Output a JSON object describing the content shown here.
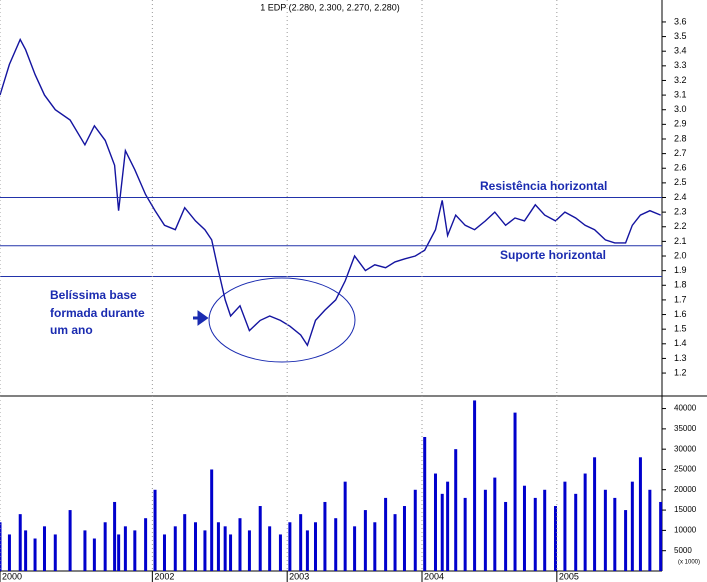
{
  "chart_data": [
    {
      "type": "line",
      "title": "1 EDP (2.280, 2.300, 2.270, 2.280)",
      "color": "#1414a0",
      "x": [
        2000.87,
        2000.94,
        2001.02,
        2001.06,
        2001.13,
        2001.2,
        2001.28,
        2001.39,
        2001.5,
        2001.57,
        2001.65,
        2001.72,
        2001.75,
        2001.8,
        2001.87,
        2001.95,
        2002.02,
        2002.09,
        2002.17,
        2002.24,
        2002.32,
        2002.39,
        2002.44,
        2002.49,
        2002.54,
        2002.58,
        2002.65,
        2002.72,
        2002.8,
        2002.87,
        2002.95,
        2003.02,
        2003.1,
        2003.15,
        2003.21,
        2003.28,
        2003.36,
        2003.43,
        2003.5,
        2003.58,
        2003.65,
        2003.73,
        2003.8,
        2003.87,
        2003.95,
        2004.02,
        2004.1,
        2004.15,
        2004.19,
        2004.25,
        2004.32,
        2004.39,
        2004.47,
        2004.54,
        2004.62,
        2004.69,
        2004.76,
        2004.84,
        2004.91,
        2004.99,
        2005.06,
        2005.14,
        2005.21,
        2005.28,
        2005.36,
        2005.43,
        2005.51,
        2005.56,
        2005.62,
        2005.69,
        2005.77
      ],
      "values": [
        3.1,
        3.31,
        3.48,
        3.41,
        3.24,
        3.1,
        3.0,
        2.93,
        2.76,
        2.89,
        2.79,
        2.62,
        2.31,
        2.72,
        2.59,
        2.42,
        2.31,
        2.21,
        2.18,
        2.33,
        2.24,
        2.18,
        2.11,
        1.9,
        1.7,
        1.59,
        1.66,
        1.49,
        1.56,
        1.59,
        1.56,
        1.52,
        1.46,
        1.39,
        1.56,
        1.63,
        1.7,
        1.83,
        2.0,
        1.9,
        1.94,
        1.92,
        1.96,
        1.98,
        2.0,
        2.04,
        2.18,
        2.38,
        2.14,
        2.28,
        2.21,
        2.18,
        2.24,
        2.3,
        2.21,
        2.26,
        2.24,
        2.35,
        2.28,
        2.24,
        2.3,
        2.26,
        2.21,
        2.18,
        2.11,
        2.09,
        2.09,
        2.21,
        2.28,
        2.31,
        2.28
      ],
      "xlim": [
        2000.87,
        2005.78
      ],
      "ylim": [
        1.05,
        3.75
      ],
      "yticks": [
        1.2,
        1.3,
        1.4,
        1.5,
        1.6,
        1.7,
        1.8,
        1.9,
        {
          "value": 2,
          "label": "2.0"
        },
        2.1,
        2.2,
        2.3,
        2.4,
        2.5,
        2.6,
        2.7,
        2.8,
        2.9,
        {
          "value": 3,
          "label": "3.0"
        },
        3.1,
        3.2,
        3.3,
        3.4,
        3.5,
        3.6
      ],
      "hlines": [
        2.4,
        2.07,
        1.86
      ],
      "hline_color": "#2233aa",
      "annotations": [
        "Resistência horizontal",
        "Suporte horizontal",
        "Belíssima base",
        "formada durante",
        "um ano"
      ]
    },
    {
      "type": "bar",
      "color": "#0000cc",
      "unit_label": "(x 1000)",
      "x": [
        2000.87,
        2000.94,
        2001.02,
        2001.06,
        2001.13,
        2001.2,
        2001.28,
        2001.39,
        2001.5,
        2001.57,
        2001.65,
        2001.72,
        2001.75,
        2001.8,
        2001.87,
        2001.95,
        2002.02,
        2002.09,
        2002.17,
        2002.24,
        2002.32,
        2002.39,
        2002.44,
        2002.49,
        2002.54,
        2002.58,
        2002.65,
        2002.72,
        2002.8,
        2002.87,
        2002.95,
        2003.02,
        2003.1,
        2003.15,
        2003.21,
        2003.28,
        2003.36,
        2003.43,
        2003.5,
        2003.58,
        2003.65,
        2003.73,
        2003.8,
        2003.87,
        2003.95,
        2004.02,
        2004.1,
        2004.15,
        2004.19,
        2004.25,
        2004.32,
        2004.39,
        2004.47,
        2004.54,
        2004.62,
        2004.69,
        2004.76,
        2004.84,
        2004.91,
        2004.99,
        2005.06,
        2005.14,
        2005.21,
        2005.28,
        2005.36,
        2005.43,
        2005.51,
        2005.56,
        2005.62,
        2005.69,
        2005.77
      ],
      "values": [
        12000,
        9000,
        14000,
        10000,
        8000,
        11000,
        9000,
        15000,
        10000,
        8000,
        12000,
        17000,
        9000,
        11000,
        10000,
        13000,
        20000,
        9000,
        11000,
        14000,
        12000,
        10000,
        25000,
        12000,
        11000,
        9000,
        13000,
        10000,
        16000,
        11000,
        9000,
        12000,
        14000,
        10000,
        12000,
        17000,
        13000,
        22000,
        11000,
        15000,
        12000,
        18000,
        14000,
        16000,
        20000,
        33000,
        24000,
        19000,
        22000,
        30000,
        18000,
        42000,
        20000,
        23000,
        17000,
        39000,
        21000,
        18000,
        20000,
        16000,
        22000,
        19000,
        24000,
        28000,
        20000,
        18000,
        15000,
        22000,
        28000,
        20000,
        17000
      ],
      "xlim": [
        2000.87,
        2005.78
      ],
      "xticks": [
        {
          "value": 2000.87,
          "label": "2000"
        },
        2002,
        2003,
        2004,
        2005
      ],
      "ylim": [
        0,
        42600
      ],
      "yticks": [
        5000,
        10000,
        15000,
        20000,
        25000,
        30000,
        35000,
        40000
      ]
    }
  ]
}
